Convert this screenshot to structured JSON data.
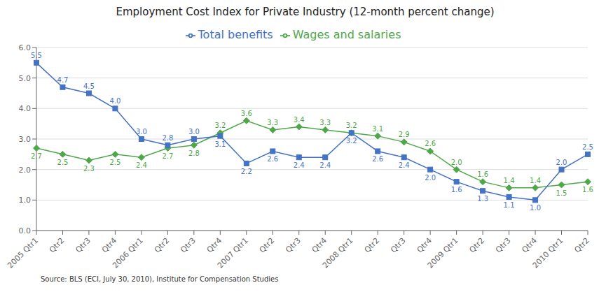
{
  "chart_data": {
    "type": "line",
    "title": "Employment Cost Index for Private Industry (12-month percent change)",
    "annotations": [
      "Source: BLS (ECI, July 30, 2010), Institute for Compensation Studies"
    ],
    "categories": [
      "2005 Qtr1",
      "Qtr2",
      "Qtr3",
      "Qtr4",
      "2006 Qtr1",
      "Qtr2",
      "Qtr3",
      "Qtr4",
      "2007 Qtr1",
      "Qtr2",
      "Qtr3",
      "Qtr4",
      "2008 Qtr1",
      "Qtr2",
      "Qtr3",
      "Qtr4",
      "2009 Qtr1",
      "Qtr2",
      "Qtr3",
      "Qtr4",
      "2010 Qtr1",
      "Qtr2"
    ],
    "series": [
      {
        "name": "Wages and salaries",
        "color": "#4EA84A",
        "marker": "diamond",
        "values": [
          2.7,
          2.5,
          2.3,
          2.5,
          2.4,
          2.7,
          2.8,
          3.2,
          3.6,
          3.3,
          3.4,
          3.3,
          3.2,
          3.1,
          2.9,
          2.6,
          2.0,
          1.6,
          1.4,
          1.4,
          1.5,
          1.6
        ],
        "value_labels": [
          "2.7",
          "2.5",
          "2.3",
          "2.5",
          "2.4",
          "2.7",
          "2.8",
          "3.2",
          "3.6",
          "3.3",
          "3.4",
          "3.3",
          "3.2",
          "3.1",
          "2.9",
          "2.6",
          "2.0",
          "1.6",
          "1.4",
          "1.4",
          "1.5",
          "1.6"
        ]
      },
      {
        "name": "Total benefits",
        "color": "#4472C4",
        "marker": "square",
        "values": [
          5.5,
          4.7,
          4.5,
          4.0,
          3.0,
          2.8,
          3.0,
          3.1,
          2.2,
          2.6,
          2.4,
          2.4,
          3.2,
          2.6,
          2.4,
          2.0,
          1.6,
          1.3,
          1.1,
          1.0,
          2.0,
          2.5
        ],
        "value_labels": [
          "5.5",
          "4.7",
          "4.5",
          "4.0",
          "3.0",
          "2.8",
          "3.0",
          "3.1",
          "2.2",
          "2.6",
          "2.4",
          "2.4",
          "3.2",
          "2.6",
          "2.4",
          "2.0",
          "1.6",
          "1.3",
          "1.1",
          "1.0",
          "2.0",
          "2.5"
        ]
      }
    ],
    "ylim": [
      0.0,
      6.0
    ],
    "yticks": [
      {
        "value": 0,
        "label": "0.0"
      },
      {
        "value": 1,
        "label": "1.0"
      },
      {
        "value": 2,
        "label": "2.0"
      },
      {
        "value": 3,
        "label": "3.0"
      },
      {
        "value": 4,
        "label": "4.0"
      },
      {
        "value": 5,
        "label": "5.0"
      },
      {
        "value": 6,
        "label": "6.0"
      }
    ],
    "grid": true,
    "legend": "top",
    "data_labels": true
  }
}
